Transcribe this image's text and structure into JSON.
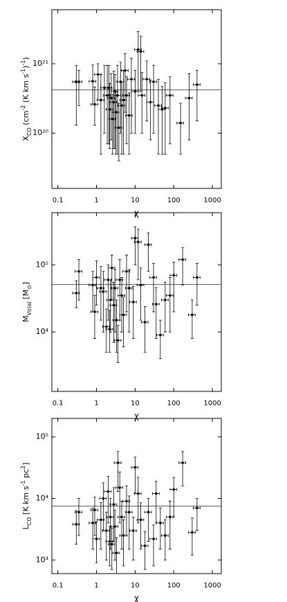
{
  "chart_data": [
    {
      "type": "scatter",
      "log_x": true,
      "log_y": true,
      "x_label": "χ",
      "y_label": [
        {
          "text": "X"
        },
        {
          "text": "CO",
          "shift": "sub"
        },
        {
          "text": " (cm"
        },
        {
          "text": "-2",
          "shift": "super"
        },
        {
          "text": " (K km s"
        },
        {
          "text": "-1",
          "shift": "super"
        },
        {
          "text": ")"
        },
        {
          "text": "-1",
          "shift": "super"
        },
        {
          "text": ")"
        }
      ],
      "xlim": [
        0.07,
        1700
      ],
      "xticks": [
        0.1,
        1,
        10,
        100,
        1000
      ],
      "ylim": [
        1.6e+19,
        6e+21
      ],
      "yticks": [
        {
          "value": 1e+20,
          "label": "10²⁰"
        },
        {
          "value": 1e+21,
          "label": "10²¹"
        }
      ],
      "hline": 4.2e+20,
      "color": "#000000",
      "series": [
        {
          "x": [
            0.3,
            0.35,
            0.8,
            1.1,
            0.9,
            1.6,
            1.9,
            2.2,
            2.4,
            2.6,
            2.8,
            3.0,
            3.2,
            3.5,
            3.8,
            4.2,
            4.5,
            5,
            5.5,
            6,
            7,
            8,
            10,
            12,
            14,
            15,
            20,
            25,
            30,
            40,
            50,
            60,
            80,
            150,
            250,
            400,
            1.3,
            2.1
          ],
          "xerr": [
            0.06,
            0.07,
            0.16,
            0.22,
            0.18,
            0.32,
            0.38,
            0.44,
            0.48,
            0.52,
            0.56,
            0.6,
            0.64,
            0.7,
            0.76,
            0.84,
            0.9,
            1,
            1.1,
            1.2,
            1.4,
            1.6,
            2,
            2.4,
            2.8,
            3,
            4,
            5,
            6,
            8,
            10,
            12,
            16,
            30,
            50,
            80,
            0.26,
            0.42
          ],
          "y": [
            5.5e+20,
            5.5e+20,
            5.6e+20,
            7e+20,
            2.6e+20,
            4.5e+20,
            3.5e+20,
            2.2e+20,
            3.2e+20,
            1.6e+20,
            2.8e+20,
            4e+20,
            2e+20,
            3.5e+20,
            1.2e+20,
            5.5e+20,
            2.5e+20,
            3e+20,
            8e+20,
            3.5e+20,
            1.8e+20,
            6e+20,
            4e+20,
            1.6e+21,
            1.5e+21,
            3.5e+20,
            6e+20,
            2.8e+20,
            5.5e+20,
            2.5e+20,
            2.2e+20,
            2.3e+20,
            3.5e+20,
            1.4e+20,
            3.2e+20,
            5e+20,
            3e+20,
            4.5e+20
          ],
          "yerr_minus": [
            4.2e+20,
            3e+20,
            3e+20,
            4e+20,
            1.3e+20,
            3.5e+20,
            2.8e+20,
            1.6e+20,
            2.4e+20,
            1.1e+20,
            2.2e+20,
            3.4e+20,
            1.5e+20,
            3e+20,
            8e+19,
            4.5e+20,
            2e+20,
            2.5e+20,
            6e+20,
            2.8e+20,
            1.3e+20,
            5e+20,
            3e+20,
            1.2e+21,
            1.1e+21,
            2.5e+20,
            4.5e+20,
            2e+20,
            4.5e+20,
            2e+20,
            1.7e+20,
            1.8e+20,
            2.8e+20,
            9e+19,
            2.4e+20,
            3.5e+20,
            2.5e+20,
            3.8e+20
          ],
          "yerr_plus": [
            4e+20,
            2.5e+20,
            4e+20,
            3e+20,
            2e+20,
            5e+20,
            6e+20,
            3e+20,
            4e+20,
            2e+20,
            5e+20,
            3e+20,
            2e+20,
            6e+20,
            1.5e+20,
            5e+20,
            3e+20,
            5e+20,
            6e+20,
            3e+20,
            2e+20,
            6e+20,
            4e+20,
            1.3e+21,
            1e+21,
            4e+20,
            5e+20,
            3e+20,
            4e+20,
            3.5e+20,
            2.5e+20,
            3e+20,
            3e+20,
            1.3e+20,
            4e+20,
            3e+20,
            4e+20,
            5e+20
          ]
        }
      ]
    },
    {
      "type": "scatter",
      "log_x": true,
      "log_y": true,
      "x_label": "χ",
      "y_label": [
        {
          "text": "M"
        },
        {
          "text": "Virial",
          "shift": "sub"
        },
        {
          "text": " [M"
        },
        {
          "text": "⊙",
          "shift": "sub"
        },
        {
          "text": "]"
        }
      ],
      "xlim": [
        0.07,
        1700
      ],
      "xticks": [
        0.1,
        1,
        10,
        100,
        1000
      ],
      "ylim": [
        1300,
        600000.0
      ],
      "yticks": [
        {
          "value": 10000.0,
          "label": "10⁴"
        },
        {
          "value": 100000.0,
          "label": "10⁵"
        }
      ],
      "hline": 51000.0,
      "color": "#000000",
      "series": [
        {
          "x": [
            0.3,
            0.35,
            0.8,
            0.9,
            1.0,
            1.5,
            1.8,
            2.0,
            2.3,
            2.5,
            2.8,
            3.0,
            3.3,
            3.6,
            4,
            4.5,
            5,
            6,
            7,
            9,
            10,
            12,
            14,
            18,
            22,
            30,
            35,
            45,
            60,
            80,
            100,
            170,
            300,
            400,
            1.3,
            2.2
          ],
          "xerr": [
            0.06,
            0.07,
            0.16,
            0.18,
            0.2,
            0.3,
            0.36,
            0.4,
            0.46,
            0.5,
            0.56,
            0.6,
            0.66,
            0.72,
            0.8,
            0.9,
            1,
            1.2,
            1.4,
            1.8,
            2,
            2.4,
            2.8,
            3.6,
            4.4,
            6,
            7,
            9,
            12,
            16,
            20,
            34,
            60,
            80,
            0.26,
            0.44
          ],
          "y": [
            38000.0,
            80000.0,
            50000.0,
            20000.0,
            65000.0,
            40000.0,
            12000.0,
            60000.0,
            30000.0,
            90000.0,
            25000.0,
            45000.0,
            15000.0,
            7500.0,
            60000.0,
            35000.0,
            18000.0,
            80000.0,
            45000.0,
            28000.0,
            250000.0,
            220000.0,
            50000.0,
            14000.0,
            200000.0,
            65000.0,
            26000.0,
            9000.0,
            30000.0,
            35000.0,
            70000.0,
            120000.0,
            18000.0,
            65000.0,
            45000.0,
            11000.0
          ],
          "yerr_minus": [
            15000.0,
            50000.0,
            30000.0,
            12000.0,
            40000.0,
            30000.0,
            7000.0,
            45000.0,
            20000.0,
            60000.0,
            18000.0,
            35000.0,
            10000.0,
            4000.0,
            45000.0,
            25000.0,
            12000.0,
            60000.0,
            35000.0,
            20000.0,
            150000.0,
            160000.0,
            35000.0,
            9000.0,
            120000.0,
            45000.0,
            18000.0,
            5000.0,
            20000.0,
            25000.0,
            50000.0,
            70000.0,
            10000.0,
            40000.0,
            30000.0,
            6000.0
          ],
          "yerr_plus": [
            20000.0,
            40000.0,
            30000.0,
            15000.0,
            50000.0,
            40000.0,
            10000.0,
            40000.0,
            30000.0,
            50000.0,
            30000.0,
            40000.0,
            15000.0,
            5000.0,
            60000.0,
            30000.0,
            15000.0,
            60000.0,
            40000.0,
            20000.0,
            120000.0,
            120000.0,
            40000.0,
            10000.0,
            100000.0,
            40000.0,
            20000.0,
            6000.0,
            25000.0,
            30000.0,
            40000.0,
            60000.0,
            12000.0,
            40000.0,
            50000.0,
            10000.0
          ]
        }
      ]
    },
    {
      "type": "scatter",
      "log_x": true,
      "log_y": true,
      "x_label": "χ",
      "y_label": [
        {
          "text": "L"
        },
        {
          "text": "CO",
          "shift": "sub"
        },
        {
          "text": " [K km s"
        },
        {
          "text": "-1",
          "shift": "super"
        },
        {
          "text": " pc"
        },
        {
          "text": "2",
          "shift": "super"
        },
        {
          "text": "]"
        }
      ],
      "xlim": [
        0.07,
        1700
      ],
      "xticks": [
        0.1,
        1,
        10,
        100,
        1000
      ],
      "ylim": [
        600,
        200000.0
      ],
      "yticks": [
        {
          "value": 1000,
          "label": "10³"
        },
        {
          "value": 10000.0,
          "label": "10⁴"
        },
        {
          "value": 100000.0,
          "label": "10⁵"
        }
      ],
      "hline": 7500,
      "color": "#000000",
      "series": [
        {
          "x": [
            0.3,
            0.35,
            0.8,
            0.9,
            1.0,
            1.5,
            1.8,
            2.0,
            2.3,
            2.5,
            2.8,
            3.0,
            3.3,
            3.6,
            4,
            4.5,
            5,
            6,
            7,
            9,
            10,
            12,
            14,
            18,
            22,
            30,
            35,
            45,
            60,
            80,
            100,
            170,
            300,
            400,
            1.3,
            2.2
          ],
          "xerr": [
            0.06,
            0.07,
            0.16,
            0.18,
            0.2,
            0.3,
            0.36,
            0.4,
            0.46,
            0.5,
            0.56,
            0.6,
            0.66,
            0.72,
            0.8,
            0.9,
            1,
            1.2,
            1.4,
            1.8,
            2,
            2.4,
            2.8,
            3.6,
            4.4,
            6,
            7,
            9,
            12,
            16,
            20,
            34,
            60,
            80,
            0.26,
            0.44
          ],
          "y": [
            3800,
            6000,
            4000,
            6500,
            2200,
            10000.0,
            3000,
            13000.0,
            5000,
            1800,
            8000,
            3500,
            1300,
            38000.0,
            15000.0,
            5000,
            2500,
            9000,
            6000,
            3000,
            32000.0,
            12000.0,
            4500,
            1700,
            6000,
            2200,
            12000.0,
            4000,
            2500,
            5000,
            14000.0,
            38000.0,
            2800,
            7000,
            4500,
            2000
          ],
          "yerr_minus": [
            2000,
            3500,
            2500,
            4000,
            1300,
            7000,
            2000,
            9000,
            3500,
            1100,
            6000,
            2500,
            700,
            25000.0,
            11000.0,
            3500,
            1700,
            6500,
            4500,
            2000,
            20000.0,
            8000,
            3000,
            1000,
            4000,
            1400,
            8000,
            2500,
            1500,
            3500,
            9000,
            22000.0,
            1600,
            4000,
            3000,
            1200
          ],
          "yerr_plus": [
            2500,
            4000,
            3000,
            4000,
            2000,
            8000,
            3000,
            10000.0,
            5000,
            1500,
            7000,
            3000,
            1000,
            20000.0,
            12000.0,
            4000,
            2000,
            7000,
            5000,
            2000,
            15000.0,
            10000.0,
            4000,
            1200,
            4000,
            1500,
            7000,
            3000,
            2000,
            4000,
            8000,
            20000.0,
            2000,
            3000,
            4000,
            1500
          ]
        }
      ]
    }
  ]
}
